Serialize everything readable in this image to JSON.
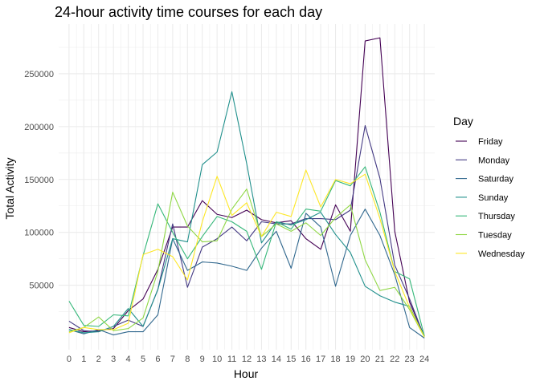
{
  "chart_data": {
    "type": "line",
    "title": "24-hour activity time courses for each day",
    "xlabel": "Hour",
    "ylabel": "Total Activity",
    "x": [
      0,
      1,
      2,
      3,
      4,
      5,
      6,
      7,
      8,
      9,
      10,
      11,
      12,
      13,
      14,
      15,
      16,
      17,
      18,
      19,
      20,
      21,
      22,
      23,
      24
    ],
    "x_tick_labels": [
      "0",
      "1",
      "2",
      "3",
      "4",
      "5",
      "6",
      "7",
      "8",
      "9",
      "10",
      "11",
      "12",
      "13",
      "14",
      "15",
      "16",
      "17",
      "18",
      "19",
      "20",
      "21",
      "22",
      "23",
      "24"
    ],
    "y_ticks": [
      50000,
      100000,
      150000,
      200000,
      250000
    ],
    "y_tick_labels": [
      "50000",
      "100000",
      "150000",
      "200000",
      "250000"
    ],
    "xlim": [
      -0.7,
      24.7
    ],
    "ylim": [
      -11000,
      297000
    ],
    "grid": true,
    "legend": {
      "title": "Day",
      "position": "right"
    },
    "series": [
      {
        "name": "Friday",
        "color": "#440154",
        "values": [
          10000,
          6000,
          7000,
          9000,
          26000,
          37000,
          65000,
          105000,
          105000,
          130000,
          117000,
          114000,
          121000,
          112000,
          109000,
          111000,
          94000,
          84000,
          126000,
          101000,
          281000,
          284000,
          101000,
          34000,
          2000
        ]
      },
      {
        "name": "Monday",
        "color": "#443A83",
        "values": [
          16000,
          7000,
          6000,
          11000,
          17000,
          11000,
          46000,
          108000,
          48000,
          86000,
          94000,
          105000,
          92000,
          110000,
          108000,
          108000,
          113000,
          113000,
          112000,
          121000,
          201000,
          151000,
          69000,
          37000,
          1000
        ]
      },
      {
        "name": "Saturday",
        "color": "#31688E",
        "values": [
          8000,
          4000,
          8000,
          3000,
          6000,
          6000,
          22000,
          94000,
          64000,
          72000,
          71000,
          68000,
          64000,
          85000,
          101000,
          66000,
          118000,
          105000,
          49000,
          97000,
          122000,
          97000,
          60000,
          10000,
          0
        ]
      },
      {
        "name": "Sunday",
        "color": "#21908C",
        "values": [
          8000,
          5000,
          6000,
          11000,
          28000,
          11000,
          46000,
          94000,
          91000,
          164000,
          176000,
          233000,
          165000,
          90000,
          110000,
          107000,
          112000,
          119000,
          98000,
          81000,
          49000,
          40000,
          34000,
          30000,
          2000
        ]
      },
      {
        "name": "Thursday",
        "color": "#35B779",
        "values": [
          35000,
          12000,
          11000,
          22000,
          21000,
          78000,
          127000,
          100000,
          75000,
          96000,
          115000,
          110000,
          101000,
          65000,
          110000,
          103000,
          122000,
          120000,
          149000,
          144000,
          162000,
          119000,
          63000,
          56000,
          2000
        ]
      },
      {
        "name": "Tuesday",
        "color": "#8FD744",
        "values": [
          6000,
          10000,
          20000,
          7000,
          9000,
          19000,
          63000,
          138000,
          106000,
          91000,
          92000,
          122000,
          141000,
          96000,
          108000,
          101000,
          109000,
          97000,
          114000,
          126000,
          74000,
          45000,
          48000,
          27000,
          1000
        ]
      },
      {
        "name": "Wednesday",
        "color": "#FDE725",
        "values": [
          5000,
          10000,
          8000,
          8000,
          14000,
          79000,
          84000,
          77000,
          55000,
          110000,
          153000,
          116000,
          128000,
          96000,
          119000,
          115000,
          159000,
          124000,
          150000,
          146000,
          155000,
          113000,
          63000,
          29000,
          1000
        ]
      }
    ]
  }
}
